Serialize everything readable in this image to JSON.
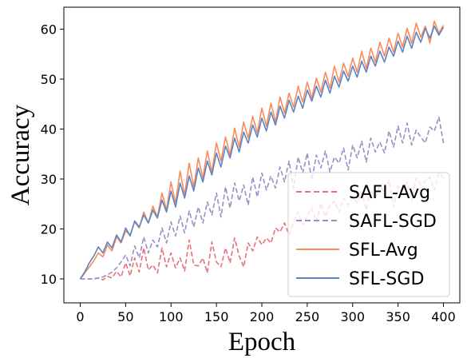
{
  "chart_data": {
    "type": "line",
    "xlabel": "Epoch",
    "ylabel": "Accuracy",
    "xlim": [
      -18,
      418
    ],
    "ylim": [
      5.2,
      64.4
    ],
    "xticks": [
      0,
      50,
      100,
      150,
      200,
      250,
      300,
      350,
      400
    ],
    "yticks": [
      10,
      20,
      30,
      40,
      50,
      60
    ],
    "grid": false,
    "legend_position": "lower-right",
    "series": [
      {
        "name": "SAFL-Avg",
        "color": "#e8707a",
        "dash": "dashed",
        "x": [
          0,
          5,
          10,
          15,
          20,
          25,
          30,
          35,
          40,
          45,
          50,
          55,
          60,
          65,
          70,
          75,
          80,
          85,
          90,
          95,
          100,
          105,
          110,
          115,
          120,
          125,
          130,
          135,
          140,
          145,
          150,
          155,
          160,
          165,
          170,
          175,
          180,
          185,
          190,
          195,
          200,
          205,
          210,
          215,
          220,
          225,
          230,
          235,
          240,
          245,
          250,
          255,
          260,
          265,
          270,
          275,
          280,
          285,
          290,
          295,
          300,
          305,
          310,
          315,
          320,
          325,
          330,
          335,
          340,
          345,
          350,
          355,
          360,
          365,
          370,
          375,
          380,
          385,
          390,
          395,
          400
        ],
        "y": [
          10,
          10,
          10,
          10,
          10.2,
          9.8,
          10.5,
          10.2,
          11.5,
          10.4,
          13.2,
          10.6,
          14.2,
          11.4,
          16.2,
          11.8,
          12.8,
          11.2,
          16.2,
          12.4,
          15.2,
          12.2,
          14.2,
          11.6,
          17.8,
          12.8,
          12.6,
          14.2,
          11.2,
          17.4,
          13.4,
          12.4,
          16.2,
          13.2,
          18.2,
          14.6,
          12.4,
          17.2,
          15.6,
          18.4,
          16.8,
          18.2,
          17.2,
          20.2,
          19.4,
          21.2,
          18.8,
          21.4,
          23.4,
          20.8,
          22.6,
          24.2,
          21.4,
          25.2,
          22.4,
          24.8,
          25.6,
          23.4,
          26.2,
          24.8,
          26.4,
          25.2,
          27.4,
          23.8,
          27.8,
          26.2,
          28.6,
          27.4,
          29.8,
          24.4,
          28.6,
          27.8,
          29.4,
          25.6,
          30.2,
          28.8,
          29.6,
          30.4,
          27.8,
          31.2,
          30.2
        ]
      },
      {
        "name": "SAFL-SGD",
        "color": "#9b8ec4",
        "dash": "dashed",
        "x": [
          0,
          5,
          10,
          15,
          20,
          25,
          30,
          35,
          40,
          45,
          50,
          55,
          60,
          65,
          70,
          75,
          80,
          85,
          90,
          95,
          100,
          105,
          110,
          115,
          120,
          125,
          130,
          135,
          140,
          145,
          150,
          155,
          160,
          165,
          170,
          175,
          180,
          185,
          190,
          195,
          200,
          205,
          210,
          215,
          220,
          225,
          230,
          235,
          240,
          245,
          250,
          255,
          260,
          265,
          270,
          275,
          280,
          285,
          290,
          295,
          300,
          305,
          310,
          315,
          320,
          325,
          330,
          335,
          340,
          345,
          350,
          355,
          360,
          365,
          370,
          375,
          380,
          385,
          390,
          395,
          400
        ],
        "y": [
          10,
          10,
          10,
          10,
          10.2,
          10.4,
          10.8,
          11.4,
          12.2,
          13.4,
          14.8,
          12.6,
          16.6,
          14.2,
          18.4,
          15.2,
          17.8,
          16.4,
          20.2,
          17.2,
          21.4,
          18.6,
          22.6,
          19.2,
          23.6,
          20.4,
          24.4,
          21.2,
          25.4,
          22.8,
          27.2,
          22.4,
          28.4,
          24.2,
          29.2,
          25.6,
          28.8,
          24.8,
          30.4,
          26.4,
          31.2,
          27.8,
          30.6,
          28.2,
          32.4,
          29.4,
          33.6,
          28.2,
          34.4,
          31.2,
          35.2,
          29.8,
          34.8,
          32.2,
          35.6,
          31.4,
          34.4,
          33.2,
          36.2,
          31.8,
          36.8,
          34.2,
          37.6,
          33.4,
          38.2,
          35.4,
          37.4,
          35.2,
          39.6,
          36.4,
          40.6,
          37.2,
          41.2,
          36.8,
          39.8,
          38.4,
          37.2,
          40.4,
          39.6,
          42.4,
          37.2
        ]
      },
      {
        "name": "SFL-Avg",
        "color": "#fb8a5c",
        "dash": "solid",
        "x": [
          0,
          5,
          10,
          15,
          20,
          25,
          30,
          35,
          40,
          45,
          50,
          55,
          60,
          65,
          70,
          75,
          80,
          85,
          90,
          95,
          100,
          105,
          110,
          115,
          120,
          125,
          130,
          135,
          140,
          145,
          150,
          155,
          160,
          165,
          170,
          175,
          180,
          185,
          190,
          195,
          200,
          205,
          210,
          215,
          220,
          225,
          230,
          235,
          240,
          245,
          250,
          255,
          260,
          265,
          270,
          275,
          280,
          285,
          290,
          295,
          300,
          305,
          310,
          315,
          320,
          325,
          330,
          335,
          340,
          345,
          350,
          355,
          360,
          365,
          370,
          375,
          380,
          385,
          390,
          395,
          400
        ],
        "y": [
          10,
          11.2,
          12.4,
          13.6,
          15.2,
          14.4,
          16.8,
          15.6,
          18.4,
          17.2,
          19.6,
          18.8,
          21.4,
          20.2,
          23.4,
          21.2,
          24.6,
          22.4,
          27.2,
          23.8,
          29.4,
          25.2,
          31.6,
          26.8,
          33.2,
          28.4,
          34.2,
          30.2,
          35.6,
          31.4,
          37.2,
          33.6,
          38.4,
          34.8,
          40.2,
          36.4,
          41.4,
          38.2,
          42.6,
          39.2,
          44.2,
          40.6,
          45.2,
          41.4,
          46.4,
          43.2,
          47.2,
          44.4,
          48.6,
          45.4,
          49.4,
          46.2,
          50.2,
          47.4,
          51.4,
          48.2,
          52.6,
          49.4,
          53.2,
          50.6,
          54.2,
          51.4,
          55.6,
          52.2,
          56.2,
          53.4,
          57.4,
          54.6,
          58.2,
          55.4,
          59.2,
          56.4,
          60.2,
          57.2,
          61.2,
          58.4,
          60.6,
          57.2,
          61.6,
          59.2,
          60.8
        ]
      },
      {
        "name": "SFL-SGD",
        "color": "#5a84c4",
        "dash": "solid",
        "x": [
          0,
          5,
          10,
          15,
          20,
          25,
          30,
          35,
          40,
          45,
          50,
          55,
          60,
          65,
          70,
          75,
          80,
          85,
          90,
          95,
          100,
          105,
          110,
          115,
          120,
          125,
          130,
          135,
          140,
          145,
          150,
          155,
          160,
          165,
          170,
          175,
          180,
          185,
          190,
          195,
          200,
          205,
          210,
          215,
          220,
          225,
          230,
          235,
          240,
          245,
          250,
          255,
          260,
          265,
          270,
          275,
          280,
          285,
          290,
          295,
          300,
          305,
          310,
          315,
          320,
          325,
          330,
          335,
          340,
          345,
          350,
          355,
          360,
          365,
          370,
          375,
          380,
          385,
          390,
          395,
          400
        ],
        "y": [
          10,
          11.4,
          13.2,
          14.6,
          16.4,
          15.2,
          17.4,
          16.2,
          18.8,
          17.4,
          20.2,
          18.6,
          21.6,
          20.4,
          22.8,
          21.2,
          23.8,
          22.2,
          25.8,
          23.4,
          27.6,
          24.4,
          29.2,
          26.2,
          30.6,
          27.6,
          32.2,
          29.4,
          33.6,
          30.8,
          35.2,
          32.4,
          36.6,
          34.2,
          38.2,
          35.4,
          39.4,
          37.2,
          40.8,
          38.4,
          42.2,
          39.6,
          43.4,
          40.8,
          44.6,
          42.2,
          45.8,
          43.4,
          46.6,
          44.2,
          47.8,
          45.6,
          48.6,
          46.4,
          49.8,
          47.2,
          50.6,
          48.4,
          51.6,
          49.6,
          52.6,
          50.4,
          53.6,
          51.4,
          54.6,
          52.6,
          55.6,
          53.4,
          56.4,
          54.6,
          57.6,
          55.4,
          58.6,
          56.2,
          59.4,
          57.4,
          60.2,
          58.2,
          60.6,
          58.8,
          60.4
        ]
      }
    ]
  }
}
